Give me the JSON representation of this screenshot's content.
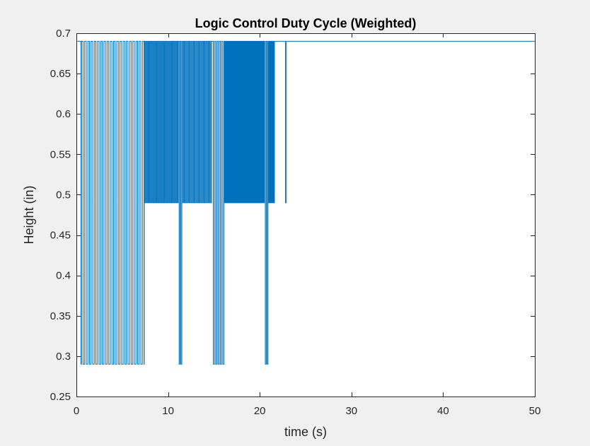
{
  "window": {
    "background": "#f0f0f0"
  },
  "chart_data": {
    "type": "line",
    "title": "Logic Control Duty Cycle (Weighted)",
    "xlabel": "time (s)",
    "ylabel": "Height (in)",
    "xlim": [
      0,
      50
    ],
    "ylim": [
      0.25,
      0.7
    ],
    "x_ticks": [
      0,
      10,
      20,
      30,
      40,
      50
    ],
    "x_tick_labels": [
      "0",
      "10",
      "20",
      "30",
      "40",
      "50"
    ],
    "y_ticks": [
      0.25,
      0.3,
      0.35,
      0.4,
      0.45,
      0.5,
      0.55,
      0.6,
      0.65,
      0.7
    ],
    "y_tick_labels": [
      "0.25",
      "0.3",
      "0.35",
      "0.4",
      "0.45",
      "0.5",
      "0.55",
      "0.6",
      "0.65",
      "0.7"
    ],
    "grid": false,
    "line_color": "#0072bd",
    "series": [
      {
        "levels": {
          "high": 0.69,
          "mid": 0.49,
          "low": 0.29
        },
        "segments": [
          {
            "t_start": 0.0,
            "t_end": 0.5,
            "pattern": "constant",
            "value": 0.69
          },
          {
            "t_start": 0.5,
            "t_end": 0.55,
            "pattern": "constant",
            "value": 0.29
          },
          {
            "t_start": 0.55,
            "t_end": 7.4,
            "pattern": "square",
            "period": 0.35,
            "high": 0.69,
            "low": 0.29
          },
          {
            "t_start": 7.4,
            "t_end": 11.1,
            "pattern": "square",
            "period": 0.17,
            "high": 0.69,
            "low": 0.49
          },
          {
            "t_start": 11.1,
            "t_end": 11.5,
            "pattern": "square",
            "period": 0.2,
            "high": 0.69,
            "low": 0.29
          },
          {
            "t_start": 11.5,
            "t_end": 14.8,
            "pattern": "square",
            "period": 0.18,
            "high": 0.69,
            "low": 0.49
          },
          {
            "t_start": 14.8,
            "t_end": 16.1,
            "pattern": "square",
            "period": 0.26,
            "high": 0.69,
            "low": 0.29
          },
          {
            "t_start": 16.1,
            "t_end": 20.5,
            "pattern": "square",
            "period": 0.07,
            "high": 0.69,
            "low": 0.49
          },
          {
            "t_start": 20.5,
            "t_end": 20.9,
            "pattern": "square",
            "period": 0.2,
            "high": 0.69,
            "low": 0.29
          },
          {
            "t_start": 20.9,
            "t_end": 21.6,
            "pattern": "square",
            "period": 0.14,
            "high": 0.69,
            "low": 0.49
          },
          {
            "t_start": 21.6,
            "t_end": 22.8,
            "pattern": "constant",
            "value": 0.69
          },
          {
            "t_start": 22.8,
            "t_end": 22.9,
            "pattern": "constant",
            "value": 0.49
          },
          {
            "t_start": 22.9,
            "t_end": 50.0,
            "pattern": "constant",
            "value": 0.69
          }
        ]
      }
    ]
  }
}
